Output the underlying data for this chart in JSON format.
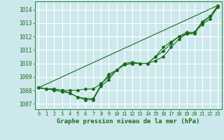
{
  "title": "Graphe pression niveau de la mer (hPa)",
  "bg_color": "#cce8ec",
  "grid_color": "#ffffff",
  "line_color": "#1a6b1a",
  "xlim": [
    -0.5,
    23.5
  ],
  "ylim": [
    1006.6,
    1014.6
  ],
  "yticks": [
    1007,
    1008,
    1009,
    1010,
    1011,
    1012,
    1013,
    1014
  ],
  "xticks": [
    0,
    1,
    2,
    3,
    4,
    5,
    6,
    7,
    8,
    9,
    10,
    11,
    12,
    13,
    14,
    15,
    16,
    17,
    18,
    19,
    20,
    21,
    22,
    23
  ],
  "series1_x": [
    0,
    1,
    2,
    3,
    4,
    5,
    6,
    7,
    8,
    9,
    10,
    11,
    12,
    13,
    14,
    15,
    16,
    17,
    18,
    19,
    20,
    21,
    22,
    23
  ],
  "series1_y": [
    1008.2,
    1008.1,
    1008.1,
    1008.0,
    1007.8,
    1007.5,
    1007.3,
    1007.3,
    1008.3,
    1008.8,
    1009.5,
    1009.9,
    1010.0,
    1010.0,
    1010.0,
    1010.5,
    1010.9,
    1011.5,
    1012.0,
    1012.2,
    1012.2,
    1013.0,
    1013.5,
    1014.2
  ],
  "series2_x": [
    0,
    1,
    2,
    3,
    4,
    5,
    6,
    7,
    8,
    9,
    10,
    11,
    12,
    13,
    14,
    15,
    16,
    17,
    18,
    19,
    20,
    21,
    22,
    23
  ],
  "series2_y": [
    1008.2,
    1008.1,
    1008.1,
    1008.0,
    1008.0,
    1008.0,
    1008.1,
    1008.1,
    1008.5,
    1009.0,
    1009.5,
    1009.9,
    1010.0,
    1010.0,
    1010.0,
    1010.2,
    1010.5,
    1011.2,
    1011.8,
    1012.2,
    1012.3,
    1012.9,
    1013.3,
    1014.2
  ],
  "series3_x": [
    0,
    1,
    2,
    3,
    4,
    5,
    6,
    7,
    8,
    9,
    10,
    11,
    12,
    13,
    14,
    15,
    16,
    17,
    18,
    19,
    20,
    21,
    22,
    23
  ],
  "series3_y": [
    1008.2,
    1008.1,
    1008.0,
    1007.9,
    1007.8,
    1007.5,
    1007.4,
    1007.4,
    1008.4,
    1009.2,
    1009.5,
    1010.0,
    1010.1,
    1010.0,
    1010.0,
    1010.5,
    1011.2,
    1011.6,
    1012.0,
    1012.3,
    1012.3,
    1013.1,
    1013.5,
    1014.3
  ],
  "series4_x": [
    0,
    23
  ],
  "series4_y": [
    1008.2,
    1014.3
  ]
}
